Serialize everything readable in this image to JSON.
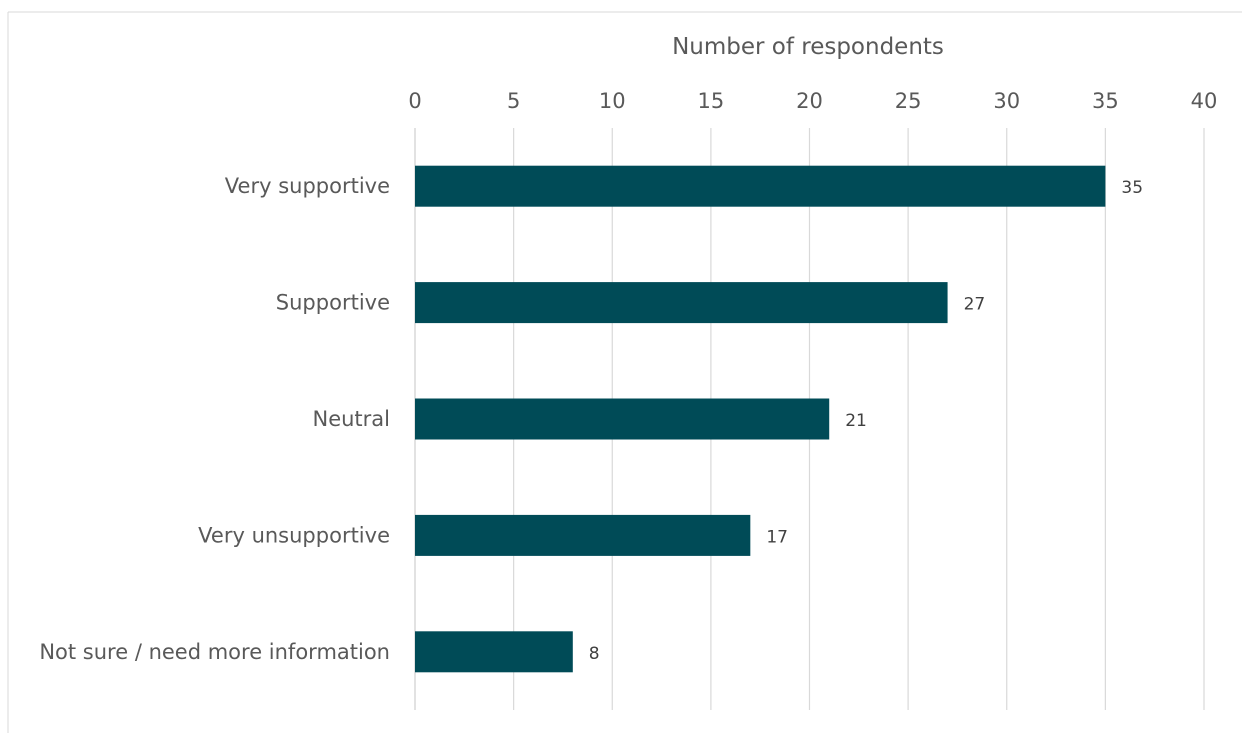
{
  "chart_data": {
    "type": "bar",
    "orientation": "horizontal",
    "title": "",
    "xlabel": "Number of respondents",
    "ylabel": "",
    "categories": [
      "Very supportive",
      "Supportive",
      "Neutral",
      "Very unsupportive",
      "Not sure / need more information"
    ],
    "values": [
      35,
      27,
      21,
      17,
      8
    ],
    "xlim": [
      0,
      40
    ],
    "xticks": [
      0,
      5,
      10,
      15,
      20,
      25,
      30,
      35,
      40
    ],
    "x_axis_position": "top",
    "grid": true,
    "data_labels": true,
    "legend": false,
    "bar_color": "#004b57",
    "grid_color": "#d9d9d9"
  }
}
